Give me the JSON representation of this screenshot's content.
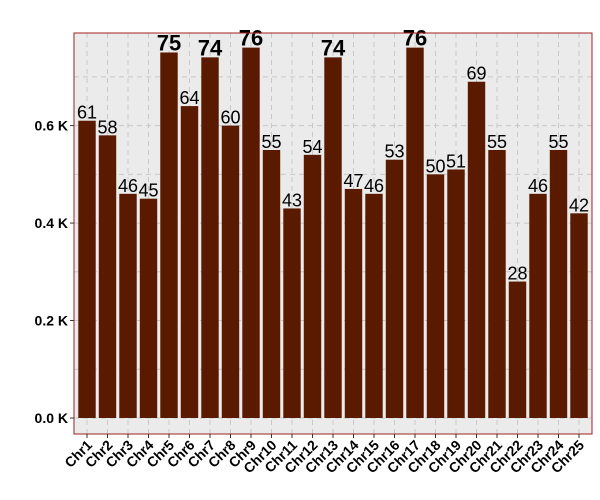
{
  "chart_data": {
    "type": "bar",
    "title": "",
    "xlabel": "",
    "ylabel": "",
    "categories": [
      "Chr1",
      "Chr2",
      "Chr3",
      "Chr4",
      "Chr5",
      "Chr6",
      "Chr7",
      "Chr8",
      "Chr9",
      "Chr10",
      "Chr11",
      "Chr12",
      "Chr13",
      "Chr14",
      "Chr15",
      "Chr16",
      "Chr17",
      "Chr18",
      "Chr19",
      "Chr20",
      "Chr21",
      "Chr22",
      "Chr23",
      "Chr24",
      "Chr25"
    ],
    "values": [
      610,
      580,
      460,
      450,
      750,
      640,
      740,
      600,
      760,
      550,
      430,
      540,
      740,
      470,
      460,
      530,
      760,
      500,
      510,
      690,
      550,
      280,
      460,
      550,
      420
    ],
    "data_labels": [
      "61",
      "58",
      "46",
      "45",
      "75",
      "64",
      "74",
      "60",
      "76",
      "55",
      "43",
      "54",
      "74",
      "47",
      "46",
      "53",
      "76",
      "50",
      "51",
      "69",
      "55",
      "28",
      "46",
      "55",
      "42"
    ],
    "highlighted": [
      false,
      false,
      false,
      false,
      true,
      false,
      true,
      false,
      true,
      false,
      false,
      false,
      true,
      false,
      false,
      false,
      true,
      false,
      false,
      false,
      false,
      false,
      false,
      false,
      false
    ],
    "ylim": [
      0,
      790
    ],
    "yticks": [
      0,
      200,
      400,
      600
    ],
    "ytick_labels": [
      "0.0 K",
      "0.2 K",
      "0.4 K",
      "0.6 K"
    ],
    "grid": true,
    "legend": "none",
    "colors": {
      "bar": "#5a1a00",
      "panel_background": "#ebebeb",
      "grid": "#c8c8c8",
      "panel_border": "#a02020",
      "label": "#000000",
      "highlight_label": "#c0202a"
    }
  }
}
